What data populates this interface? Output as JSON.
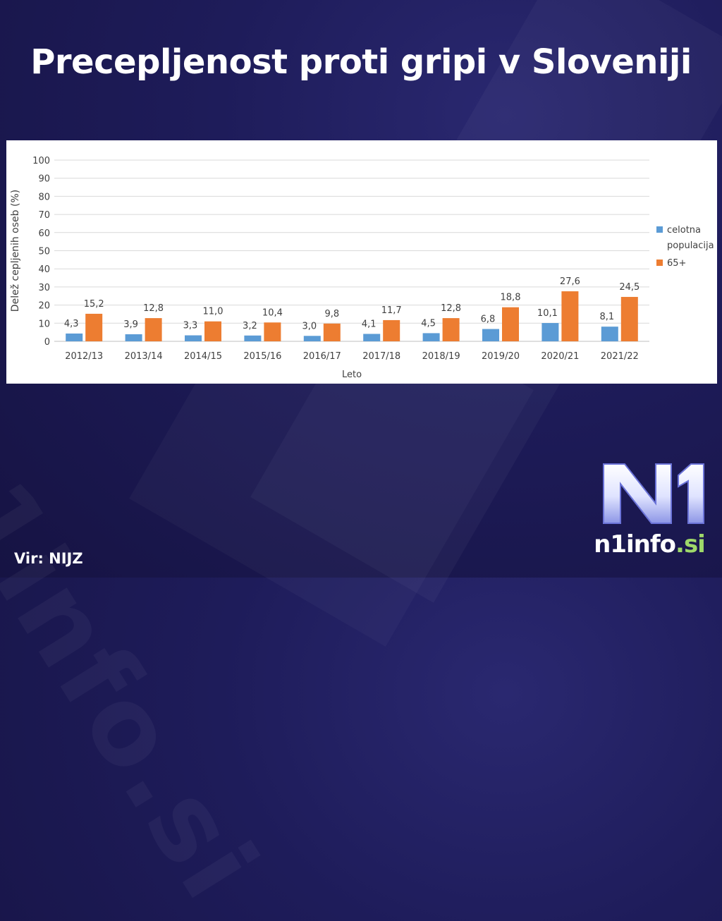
{
  "title": "Precepljenost proti gripi v Sloveniji",
  "source": "Vir: NIJZ",
  "logo": {
    "mark": "N1",
    "name": "n1info",
    "tld": ".si"
  },
  "watermark": "n1info.si",
  "colors": {
    "series_total": "#5b9bd5",
    "series_65": "#ed7d31",
    "grid": "#d9d9d9",
    "axis_text": "#404040",
    "logo_tld": "#9ed86a"
  },
  "chart_data": {
    "type": "bar",
    "title": "",
    "xlabel": "Leto",
    "ylabel": "Delež cepljenih oseb (%)",
    "ylim": [
      0,
      100
    ],
    "yticks": [
      0,
      10,
      20,
      30,
      40,
      50,
      60,
      70,
      80,
      90,
      100
    ],
    "grid": true,
    "legend_position": "right",
    "categories": [
      "2012/13",
      "2013/14",
      "2014/15",
      "2015/16",
      "2016/17",
      "2017/18",
      "2018/19",
      "2019/20",
      "2020/21",
      "2021/22"
    ],
    "series": [
      {
        "name": "celotna populacija",
        "legend_lines": [
          "celotna",
          "populacija"
        ],
        "values": [
          4.3,
          3.9,
          3.3,
          3.2,
          3.0,
          4.1,
          4.5,
          6.8,
          10.1,
          8.1
        ],
        "labels": [
          "4,3",
          "3,9",
          "3,3",
          "3,2",
          "3,0",
          "4,1",
          "4,5",
          "6,8",
          "10,1",
          "8,1"
        ]
      },
      {
        "name": "65+",
        "legend_lines": [
          "65+"
        ],
        "values": [
          15.2,
          12.8,
          11.0,
          10.4,
          9.8,
          11.7,
          12.8,
          18.8,
          27.6,
          24.5
        ],
        "labels": [
          "15,2",
          "12,8",
          "11,0",
          "10,4",
          "9,8",
          "11,7",
          "12,8",
          "18,8",
          "27,6",
          "24,5"
        ]
      }
    ]
  }
}
